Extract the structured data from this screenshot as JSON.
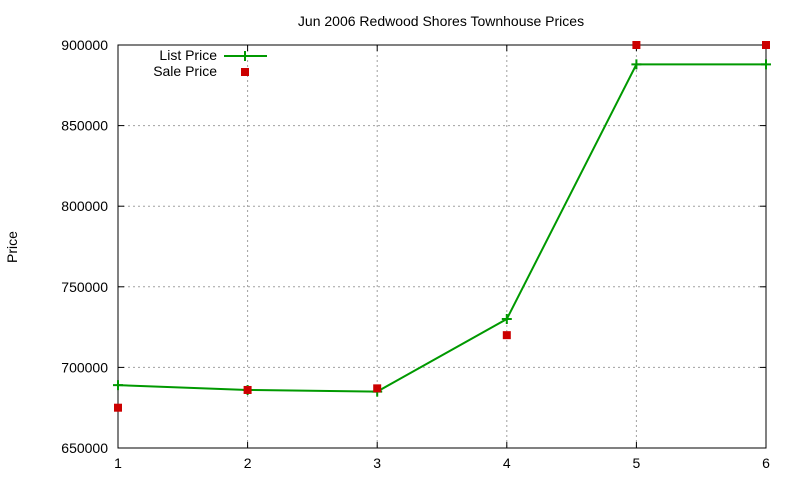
{
  "chart_data": {
    "type": "line",
    "title": "Jun 2006 Redwood Shores Townhouse Prices",
    "xlabel": "",
    "ylabel": "Price",
    "xlim": [
      1,
      6
    ],
    "ylim": [
      650000,
      900000
    ],
    "x_ticks": [
      "1",
      "2",
      "3",
      "4",
      "5",
      "6"
    ],
    "y_ticks": [
      "650000",
      "700000",
      "750000",
      "800000",
      "850000",
      "900000"
    ],
    "grid": true,
    "legend_position": "top-left",
    "series": [
      {
        "name": "List Price",
        "style": "lines+points",
        "marker": "plus",
        "color": "#009900",
        "x": [
          1,
          2,
          3,
          4,
          5,
          6
        ],
        "y": [
          689000,
          686000,
          685000,
          730000,
          888000,
          888000
        ]
      },
      {
        "name": "Sale Price",
        "style": "points",
        "marker": "square",
        "color": "#cc0000",
        "x": [
          1,
          2,
          3,
          4,
          5,
          6
        ],
        "y": [
          675000,
          686000,
          687000,
          720000,
          900000,
          900000
        ]
      }
    ]
  }
}
